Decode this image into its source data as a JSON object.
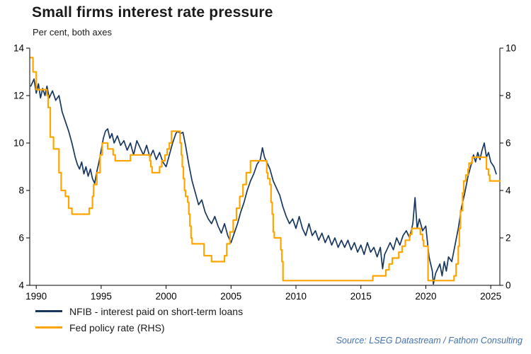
{
  "header": {
    "title": "Small firms interest rate pressure",
    "subtitle": "Per cent, both axes"
  },
  "footer": {
    "source": "Source: LSEG Datastream / Fathom Consulting"
  },
  "chart_data": {
    "type": "line",
    "title": "Small firms interest rate pressure",
    "subtitle": "Per cent, both axes",
    "grid": false,
    "legend_position": "bottom-left",
    "x_range": [
      1989.5,
      2025.7
    ],
    "x_ticks": [
      1990,
      1995,
      2000,
      2005,
      2010,
      2015,
      2020,
      2025
    ],
    "left_axis": {
      "label": "Per cent",
      "min": 4,
      "max": 14,
      "ticks": [
        4,
        6,
        8,
        10,
        12,
        14
      ]
    },
    "right_axis": {
      "label": "Per cent",
      "min": 0,
      "max": 10,
      "ticks": [
        0,
        2,
        4,
        6,
        8,
        10
      ]
    },
    "series": [
      {
        "name": "NFIB - interest paid on short-term loans",
        "axis": "left",
        "color": "#17375E",
        "width": 1.7,
        "step": false,
        "data": [
          [
            1989.58,
            12.4
          ],
          [
            1989.83,
            12.7
          ],
          [
            1990.0,
            12.1
          ],
          [
            1990.17,
            12.5
          ],
          [
            1990.33,
            11.9
          ],
          [
            1990.5,
            12.3
          ],
          [
            1990.67,
            12.0
          ],
          [
            1990.83,
            12.4
          ],
          [
            1991.0,
            11.9
          ],
          [
            1991.25,
            12.2
          ],
          [
            1991.5,
            11.8
          ],
          [
            1991.75,
            12.0
          ],
          [
            1992.0,
            11.3
          ],
          [
            1992.25,
            10.9
          ],
          [
            1992.5,
            10.5
          ],
          [
            1992.75,
            10.0
          ],
          [
            1993.0,
            9.4
          ],
          [
            1993.17,
            9.1
          ],
          [
            1993.33,
            8.9
          ],
          [
            1993.5,
            9.2
          ],
          [
            1993.67,
            8.7
          ],
          [
            1993.83,
            9.0
          ],
          [
            1994.0,
            8.6
          ],
          [
            1994.17,
            8.9
          ],
          [
            1994.33,
            8.5
          ],
          [
            1994.5,
            8.3
          ],
          [
            1994.67,
            8.8
          ],
          [
            1994.83,
            9.2
          ],
          [
            1995.0,
            9.7
          ],
          [
            1995.17,
            10.2
          ],
          [
            1995.33,
            10.5
          ],
          [
            1995.5,
            10.6
          ],
          [
            1995.67,
            10.2
          ],
          [
            1995.83,
            10.4
          ],
          [
            1996.0,
            10.0
          ],
          [
            1996.25,
            10.3
          ],
          [
            1996.5,
            9.9
          ],
          [
            1996.75,
            10.1
          ],
          [
            1997.0,
            9.7
          ],
          [
            1997.25,
            10.0
          ],
          [
            1997.5,
            9.5
          ],
          [
            1997.75,
            10.1
          ],
          [
            1998.0,
            9.8
          ],
          [
            1998.25,
            9.5
          ],
          [
            1998.5,
            9.9
          ],
          [
            1998.75,
            9.4
          ],
          [
            1999.0,
            9.7
          ],
          [
            1999.25,
            9.3
          ],
          [
            1999.5,
            9.6
          ],
          [
            1999.75,
            9.2
          ],
          [
            2000.0,
            9.0
          ],
          [
            2000.25,
            9.5
          ],
          [
            2000.5,
            10.0
          ],
          [
            2000.75,
            10.4
          ],
          [
            2000.9,
            10.5
          ],
          [
            2001.1,
            10.4
          ],
          [
            2001.3,
            10.45
          ],
          [
            2001.5,
            9.9
          ],
          [
            2001.75,
            9.1
          ],
          [
            2002.0,
            8.4
          ],
          [
            2002.25,
            7.9
          ],
          [
            2002.5,
            7.4
          ],
          [
            2002.75,
            7.6
          ],
          [
            2003.0,
            7.1
          ],
          [
            2003.25,
            6.8
          ],
          [
            2003.5,
            6.6
          ],
          [
            2003.75,
            6.9
          ],
          [
            2004.0,
            6.5
          ],
          [
            2004.25,
            6.2
          ],
          [
            2004.5,
            6.6
          ],
          [
            2004.75,
            6.1
          ],
          [
            2005.0,
            5.8
          ],
          [
            2005.25,
            6.2
          ],
          [
            2005.5,
            6.6
          ],
          [
            2005.75,
            7.1
          ],
          [
            2006.0,
            7.5
          ],
          [
            2006.25,
            8.0
          ],
          [
            2006.5,
            8.4
          ],
          [
            2006.75,
            8.7
          ],
          [
            2007.0,
            9.1
          ],
          [
            2007.25,
            9.3
          ],
          [
            2007.42,
            9.8
          ],
          [
            2007.58,
            9.4
          ],
          [
            2007.75,
            9.2
          ],
          [
            2008.0,
            8.9
          ],
          [
            2008.25,
            8.4
          ],
          [
            2008.5,
            8.1
          ],
          [
            2008.75,
            7.8
          ],
          [
            2009.0,
            7.3
          ],
          [
            2009.25,
            6.9
          ],
          [
            2009.5,
            6.6
          ],
          [
            2009.75,
            6.8
          ],
          [
            2010.0,
            6.4
          ],
          [
            2010.25,
            6.9
          ],
          [
            2010.5,
            6.4
          ],
          [
            2010.75,
            6.1
          ],
          [
            2011.0,
            6.6
          ],
          [
            2011.25,
            6.1
          ],
          [
            2011.5,
            6.3
          ],
          [
            2011.75,
            5.9
          ],
          [
            2012.0,
            6.2
          ],
          [
            2012.25,
            5.8
          ],
          [
            2012.5,
            6.1
          ],
          [
            2012.75,
            5.7
          ],
          [
            2013.0,
            6.0
          ],
          [
            2013.25,
            5.6
          ],
          [
            2013.5,
            5.9
          ],
          [
            2013.75,
            5.6
          ],
          [
            2014.0,
            5.9
          ],
          [
            2014.25,
            5.5
          ],
          [
            2014.5,
            5.8
          ],
          [
            2014.75,
            5.4
          ],
          [
            2015.0,
            5.7
          ],
          [
            2015.25,
            5.3
          ],
          [
            2015.5,
            5.8
          ],
          [
            2015.75,
            5.4
          ],
          [
            2016.0,
            5.6
          ],
          [
            2016.25,
            5.2
          ],
          [
            2016.5,
            5.6
          ],
          [
            2016.67,
            4.7
          ],
          [
            2016.83,
            5.3
          ],
          [
            2017.0,
            5.5
          ],
          [
            2017.25,
            5.8
          ],
          [
            2017.5,
            5.5
          ],
          [
            2017.75,
            6.0
          ],
          [
            2018.0,
            5.7
          ],
          [
            2018.25,
            6.1
          ],
          [
            2018.5,
            6.3
          ],
          [
            2018.75,
            6.0
          ],
          [
            2019.0,
            6.6
          ],
          [
            2019.17,
            7.7
          ],
          [
            2019.33,
            6.4
          ],
          [
            2019.5,
            6.8
          ],
          [
            2019.75,
            6.3
          ],
          [
            2020.0,
            6.5
          ],
          [
            2020.25,
            5.2
          ],
          [
            2020.5,
            4.6
          ],
          [
            2020.58,
            4.05
          ],
          [
            2020.75,
            4.5
          ],
          [
            2021.08,
            4.9
          ],
          [
            2021.25,
            4.4
          ],
          [
            2021.42,
            5.0
          ],
          [
            2021.58,
            4.6
          ],
          [
            2021.75,
            5.2
          ],
          [
            2022.0,
            5.0
          ],
          [
            2022.25,
            5.7
          ],
          [
            2022.5,
            6.4
          ],
          [
            2022.75,
            7.3
          ],
          [
            2023.0,
            7.9
          ],
          [
            2023.25,
            8.6
          ],
          [
            2023.5,
            9.1
          ],
          [
            2023.67,
            9.5
          ],
          [
            2023.83,
            9.2
          ],
          [
            2024.0,
            9.6
          ],
          [
            2024.17,
            9.3
          ],
          [
            2024.33,
            9.7
          ],
          [
            2024.5,
            10.0
          ],
          [
            2024.67,
            9.4
          ],
          [
            2024.83,
            9.6
          ],
          [
            2025.0,
            9.2
          ],
          [
            2025.25,
            9.0
          ],
          [
            2025.42,
            8.7
          ]
        ]
      },
      {
        "name": "Fed policy rate (RHS)",
        "axis": "right",
        "color": "#FFA500",
        "width": 2.2,
        "step": true,
        "data": [
          [
            1989.58,
            9.6
          ],
          [
            1989.75,
            9.0
          ],
          [
            1990.0,
            8.25
          ],
          [
            1990.83,
            8.0
          ],
          [
            1990.92,
            7.5
          ],
          [
            1991.08,
            6.25
          ],
          [
            1991.33,
            5.75
          ],
          [
            1991.75,
            4.75
          ],
          [
            1991.92,
            4.0
          ],
          [
            1992.25,
            3.75
          ],
          [
            1992.5,
            3.25
          ],
          [
            1992.75,
            3.0
          ],
          [
            1994.08,
            3.25
          ],
          [
            1994.33,
            3.75
          ],
          [
            1994.42,
            4.25
          ],
          [
            1994.67,
            4.75
          ],
          [
            1994.92,
            5.5
          ],
          [
            1995.08,
            6.0
          ],
          [
            1995.5,
            5.75
          ],
          [
            1995.92,
            5.5
          ],
          [
            1996.08,
            5.25
          ],
          [
            1997.25,
            5.5
          ],
          [
            1998.75,
            5.25
          ],
          [
            1998.83,
            5.0
          ],
          [
            1998.92,
            4.75
          ],
          [
            1999.5,
            5.0
          ],
          [
            1999.67,
            5.25
          ],
          [
            1999.92,
            5.5
          ],
          [
            2000.08,
            5.75
          ],
          [
            2000.25,
            6.0
          ],
          [
            2000.42,
            6.5
          ],
          [
            2001.08,
            6.0
          ],
          [
            2001.17,
            5.5
          ],
          [
            2001.25,
            5.0
          ],
          [
            2001.33,
            4.5
          ],
          [
            2001.42,
            4.0
          ],
          [
            2001.5,
            3.75
          ],
          [
            2001.67,
            3.5
          ],
          [
            2001.75,
            3.0
          ],
          [
            2001.83,
            2.5
          ],
          [
            2001.92,
            2.0
          ],
          [
            2002.0,
            1.75
          ],
          [
            2002.92,
            1.25
          ],
          [
            2003.5,
            1.0
          ],
          [
            2004.5,
            1.25
          ],
          [
            2004.67,
            1.75
          ],
          [
            2004.92,
            2.25
          ],
          [
            2005.17,
            2.75
          ],
          [
            2005.42,
            3.25
          ],
          [
            2005.67,
            3.75
          ],
          [
            2005.92,
            4.25
          ],
          [
            2006.17,
            4.75
          ],
          [
            2006.5,
            5.25
          ],
          [
            2007.75,
            4.75
          ],
          [
            2007.83,
            4.5
          ],
          [
            2008.0,
            4.25
          ],
          [
            2008.08,
            3.5
          ],
          [
            2008.17,
            3.0
          ],
          [
            2008.25,
            2.25
          ],
          [
            2008.33,
            2.0
          ],
          [
            2008.83,
            1.5
          ],
          [
            2008.92,
            1.0
          ],
          [
            2009.0,
            0.2
          ],
          [
            2015.92,
            0.4
          ],
          [
            2016.92,
            0.65
          ],
          [
            2017.17,
            0.9
          ],
          [
            2017.42,
            1.15
          ],
          [
            2017.92,
            1.4
          ],
          [
            2018.17,
            1.65
          ],
          [
            2018.42,
            1.9
          ],
          [
            2018.75,
            2.15
          ],
          [
            2018.92,
            2.4
          ],
          [
            2019.58,
            2.15
          ],
          [
            2019.75,
            1.9
          ],
          [
            2019.83,
            1.65
          ],
          [
            2020.17,
            0.2
          ],
          [
            2022.17,
            0.4
          ],
          [
            2022.33,
            0.9
          ],
          [
            2022.5,
            1.65
          ],
          [
            2022.58,
            2.4
          ],
          [
            2022.67,
            3.15
          ],
          [
            2022.83,
            3.9
          ],
          [
            2022.92,
            4.4
          ],
          [
            2023.08,
            4.65
          ],
          [
            2023.25,
            4.9
          ],
          [
            2023.33,
            5.15
          ],
          [
            2023.58,
            5.4
          ],
          [
            2024.67,
            4.9
          ],
          [
            2024.83,
            4.65
          ],
          [
            2024.92,
            4.4
          ],
          [
            2025.5,
            4.4
          ]
        ]
      }
    ]
  }
}
